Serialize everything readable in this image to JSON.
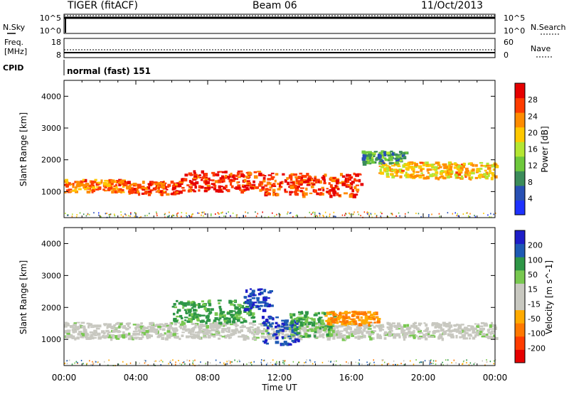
{
  "header": {
    "title": "TIGER (fitACF)",
    "beam": "Beam 06",
    "date": "11/Oct/2013"
  },
  "strips": {
    "nsky_label": "N.Sky",
    "nsearch_label": "N.Search",
    "nsky_ticks": [
      "10^5",
      "10^0"
    ],
    "nsearch_ticks": [
      "10^5",
      "10^0"
    ],
    "freq_label_1": "Freq.",
    "freq_label_2": "[MHz]",
    "freq_ticks": [
      "18",
      "8"
    ],
    "nave_label": "Nave",
    "nave_ticks": [
      "60",
      "0"
    ],
    "cpid_label": "CPID",
    "cpid_text": "normal (fast) 151"
  },
  "colors": {
    "power": [
      "#1e32ff",
      "#2850b4",
      "#3c8c5a",
      "#6ec83c",
      "#b4e632",
      "#ffc800",
      "#ff8c00",
      "#ff3c00",
      "#e60000"
    ],
    "velocity": [
      "#1e1ec8",
      "#1e5ab4",
      "#2e9646",
      "#78c850",
      "#c8c8c0",
      "#c8c8c0",
      "#ffaa00",
      "#ff7800",
      "#ff3c00",
      "#e60000"
    ]
  },
  "chart_data": [
    {
      "type": "heatmap",
      "panel": "power",
      "xlabel": "",
      "ylabel": "Slant Range [km]",
      "xlim": [
        "00:00",
        "24:00"
      ],
      "ylim": [
        180,
        4500
      ],
      "x_ticks": [
        "00:00",
        "04:00",
        "08:00",
        "12:00",
        "16:00",
        "20:00",
        "00:00"
      ],
      "y_ticks": [
        1000,
        2000,
        3000,
        4000
      ],
      "colorbar_label": "Power [dB]",
      "colorbar_ticks": [
        4,
        8,
        12,
        16,
        20,
        24,
        28
      ],
      "structures": [
        {
          "t_start": 0.0,
          "t_end": 3.5,
          "range_center": 1200,
          "range_width": 400,
          "value_dB": 22
        },
        {
          "t_start": 3.5,
          "t_end": 6.5,
          "range_center": 1150,
          "range_width": 400,
          "value_dB": 24
        },
        {
          "t_start": 6.5,
          "t_end": 11.0,
          "range_center": 1350,
          "range_width": 650,
          "value_dB": 26
        },
        {
          "t_start": 11.0,
          "t_end": 16.5,
          "range_center": 1250,
          "range_width": 700,
          "value_dB": 25
        },
        {
          "t_start": 17.5,
          "t_end": 24.0,
          "range_center": 1700,
          "range_width": 500,
          "value_dB": 18
        },
        {
          "t_start": 16.5,
          "t_end": 19.0,
          "range_center": 2100,
          "range_width": 400,
          "value_dB": 8
        }
      ]
    },
    {
      "type": "heatmap",
      "panel": "velocity",
      "xlabel": "Time UT",
      "ylabel": "Slant Range [km]",
      "xlim": [
        "00:00",
        "24:00"
      ],
      "ylim": [
        180,
        4500
      ],
      "x_ticks": [
        "00:00",
        "04:00",
        "08:00",
        "12:00",
        "16:00",
        "20:00",
        "00:00"
      ],
      "y_ticks": [
        1000,
        2000,
        3000,
        4000
      ],
      "colorbar_label": "Velocity [m s^-1]",
      "colorbar_ticks": [
        200,
        100,
        50,
        15,
        -15,
        -50,
        -100,
        -200
      ],
      "structures": [
        {
          "t_start": 0.0,
          "t_end": 24.0,
          "range_center": 1300,
          "range_width": 500,
          "value_ms": 0
        },
        {
          "t_start": 6.0,
          "t_end": 10.5,
          "range_center": 1900,
          "range_width": 700,
          "value_ms": 60
        },
        {
          "t_start": 10.0,
          "t_end": 11.5,
          "range_center": 2300,
          "range_width": 700,
          "value_ms": 200
        },
        {
          "t_start": 11.0,
          "t_end": 13.0,
          "range_center": 1300,
          "range_width": 900,
          "value_ms": 200
        },
        {
          "t_start": 12.5,
          "t_end": 15.0,
          "range_center": 1500,
          "range_width": 800,
          "value_ms": 50
        },
        {
          "t_start": 14.5,
          "t_end": 17.5,
          "range_center": 1700,
          "range_width": 400,
          "value_ms": -100
        }
      ]
    }
  ]
}
